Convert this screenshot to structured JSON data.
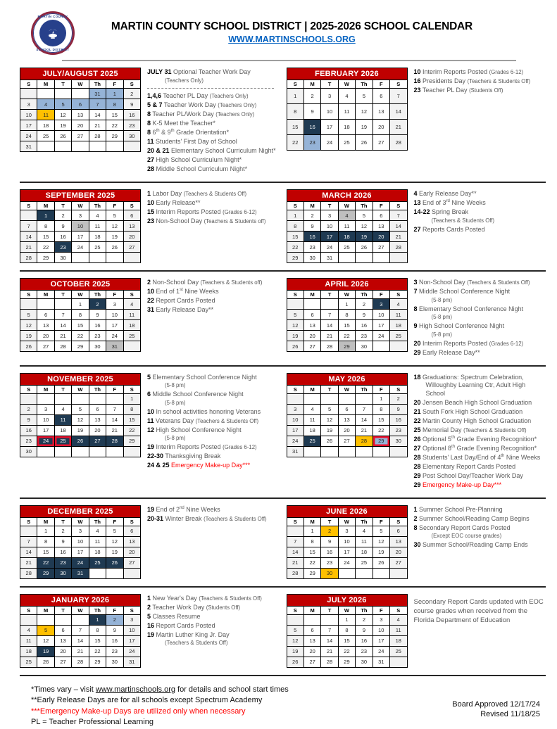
{
  "header": {
    "title": "MARTIN COUNTY SCHOOL DISTRICT | 2025-2026 SCHOOL CALENDAR",
    "website": "WWW.MARTINSCHOOLS.ORG",
    "seal_top": "MARTIN COUNTY",
    "seal_bottom": "SCHOOL DISTRICT"
  },
  "colors": {
    "header_red": "#C00000",
    "navy": "#1F3A52",
    "blue": "#95B3D7",
    "gold": "#FFC000",
    "gray": "#BFBFBF",
    "weekend": "#F2F2F2",
    "note_text": "#595959",
    "red_text": "#FF0000",
    "link_blue": "#0563C1",
    "cell_red_border": "#E8112D",
    "seal_maroon": "#8E2740",
    "seal_blue": "#27408B"
  },
  "day_headers": [
    "S",
    "M",
    "T",
    "W",
    "Th",
    "F",
    "S"
  ],
  "months": [
    {
      "id": "july-august-2025",
      "title": "JULY/AUGUST 2025",
      "weeks": [
        [
          "",
          "",
          "",
          "",
          "31:blue",
          "1:blue",
          "2"
        ],
        [
          "3",
          "4:blue",
          "5:blue",
          "6:blue",
          "7:blue",
          "8:blue",
          "9"
        ],
        [
          "10",
          "11:gold",
          "12",
          "13",
          "14",
          "15",
          "16"
        ],
        [
          "17",
          "18",
          "19",
          "20",
          "21",
          "22",
          "23"
        ],
        [
          "24",
          "25",
          "26",
          "27",
          "28",
          "29",
          "30"
        ],
        [
          "31",
          "",
          "",
          "",
          "",
          "",
          ""
        ]
      ],
      "notes": [
        {
          "n": "JULY 31",
          "t": "Optional Teacher Work Day",
          "q": "(Teachers Only)",
          "qblock": true
        },
        {
          "sep": true
        },
        {
          "n": "1,4,6",
          "t": "Teacher PL Day",
          "q": "(Teachers Only)"
        },
        {
          "n": "5 & 7",
          "t": "Teacher Work Day",
          "q": "(Teachers Only)"
        },
        {
          "n": "8",
          "t": "Teacher PL/Work Day",
          "q": "(Teachers Only)"
        },
        {
          "n": "8",
          "t": "K-5 Meet the Teacher*"
        },
        {
          "n": "8",
          "t": "6th & 9th Grade Orientation*"
        },
        {
          "n": "11",
          "t": "Students' First Day of School"
        },
        {
          "n": "20 & 21",
          "t": "Elementary School Curriculum Night*"
        },
        {
          "n": "27",
          "t": "High School Curriculum Night*"
        },
        {
          "n": "28",
          "t": "Middle School Curriculum Night*"
        }
      ]
    },
    {
      "id": "february-2026",
      "title": "FEBRUARY 2026",
      "weeks": [
        [
          "1",
          "2",
          "3",
          "4",
          "5",
          "6",
          "7"
        ],
        [
          "8",
          "9",
          "10",
          "11",
          "12",
          "13",
          "14"
        ],
        [
          "15",
          "16:navy",
          "17",
          "18",
          "19",
          "20",
          "21"
        ],
        [
          "22",
          "23:blue",
          "24",
          "25",
          "26",
          "27",
          "28"
        ]
      ],
      "notes": [
        {
          "n": "10",
          "t": "Interim Reports Posted",
          "q": "(Grades 6-12)"
        },
        {
          "n": "16",
          "t": "Presidents Day",
          "q": "(Teachers & Students Off)"
        },
        {
          "n": "23",
          "t": "Teacher PL Day",
          "q": "(Students Off)"
        }
      ]
    },
    {
      "id": "september-2025",
      "title": "SEPTEMBER 2025",
      "weeks": [
        [
          "",
          "1:navy",
          "2",
          "3",
          "4",
          "5",
          "6"
        ],
        [
          "7",
          "8",
          "9",
          "10:gray",
          "11",
          "12",
          "13"
        ],
        [
          "14",
          "15",
          "16",
          "17",
          "18",
          "19",
          "20"
        ],
        [
          "21",
          "22",
          "23:navy",
          "24",
          "25",
          "26",
          "27"
        ],
        [
          "28",
          "29",
          "30",
          "",
          "",
          "",
          ""
        ]
      ],
      "notes": [
        {
          "n": "1",
          "t": "Labor Day",
          "q": "(Teachers & Students Off)"
        },
        {
          "n": "10",
          "t": "Early Release**"
        },
        {
          "n": "15",
          "t": "Interim Reports Posted",
          "q": "(Grades 6-12)"
        },
        {
          "n": "23",
          "t": "Non-School Day",
          "q": "(Teachers & Students off)"
        }
      ]
    },
    {
      "id": "march-2026",
      "title": "MARCH 2026",
      "weeks": [
        [
          "1",
          "2",
          "3",
          "4:gray",
          "5",
          "6",
          "7"
        ],
        [
          "8",
          "9",
          "10",
          "11",
          "12",
          "13",
          "14"
        ],
        [
          "15",
          "16:navy",
          "17:navy",
          "18:navy",
          "19:navy",
          "20:navy",
          "21"
        ],
        [
          "22",
          "23",
          "24",
          "25",
          "26",
          "27",
          "28"
        ],
        [
          "29",
          "30",
          "31",
          "",
          "",
          "",
          ""
        ]
      ],
      "notes": [
        {
          "n": "4",
          "t": "Early Release Day**"
        },
        {
          "n": "13",
          "t": "End of 3rd Nine Weeks"
        },
        {
          "n": "14-22",
          "t": "Spring Break",
          "q": "(Teachers & Students Off)",
          "qblock": true
        },
        {
          "n": "27",
          "t": "Reports Cards Posted"
        }
      ]
    },
    {
      "id": "october-2025",
      "title": "OCTOBER 2025",
      "weeks": [
        [
          "",
          "",
          "",
          "1",
          "2:navy",
          "3",
          "4"
        ],
        [
          "5",
          "6",
          "7",
          "8",
          "9",
          "10",
          "11"
        ],
        [
          "12",
          "13",
          "14",
          "15",
          "16",
          "17",
          "18"
        ],
        [
          "19",
          "20",
          "21",
          "22",
          "23",
          "24",
          "25"
        ],
        [
          "26",
          "27",
          "28",
          "29",
          "30",
          "31:gray",
          ""
        ]
      ],
      "notes": [
        {
          "n": "2",
          "t": "Non-School Day",
          "q": "(Teachers & Students off)"
        },
        {
          "n": "10",
          "t": "End of 1st Nine Weeks"
        },
        {
          "n": "22",
          "t": "Report Cards Posted"
        },
        {
          "n": "31",
          "t": "Early Release Day**"
        }
      ]
    },
    {
      "id": "april-2026",
      "title": "APRIL 2026",
      "weeks": [
        [
          "",
          "",
          "",
          "1",
          "2",
          "3:navy",
          "4"
        ],
        [
          "5",
          "6",
          "7",
          "8",
          "9",
          "10",
          "11"
        ],
        [
          "12",
          "13",
          "14",
          "15",
          "16",
          "17",
          "18"
        ],
        [
          "19",
          "20",
          "21",
          "22",
          "23",
          "24",
          "25"
        ],
        [
          "26",
          "27",
          "28",
          "29:gray",
          "30",
          "",
          ""
        ]
      ],
      "notes": [
        {
          "n": "3",
          "t": "Non-School Day",
          "q": "(Teachers & Students Off)"
        },
        {
          "n": "7",
          "t": "Middle School Conference Night",
          "q": "(5-8 pm)",
          "qblock": true
        },
        {
          "n": "8",
          "t": "Elementary School Conference Night",
          "q": "(5-8 pm)",
          "qblock": true
        },
        {
          "n": "9",
          "t": "High School Conference Night",
          "q": "(5-8 pm)",
          "qblock": true
        },
        {
          "n": "20",
          "t": "Interim Reports Posted",
          "q": "(Grades 6-12)"
        },
        {
          "n": "29",
          "t": "Early Release Day**"
        }
      ]
    },
    {
      "id": "november-2025",
      "title": "NOVEMBER 2025",
      "weeks": [
        [
          "",
          "",
          "",
          "",
          "",
          "",
          "1"
        ],
        [
          "2",
          "3",
          "4",
          "5",
          "6",
          "7",
          "8"
        ],
        [
          "9",
          "10",
          "11:navy",
          "12",
          "13",
          "14",
          "15"
        ],
        [
          "16",
          "17",
          "18",
          "19",
          "20",
          "21",
          "22"
        ],
        [
          "23",
          "24:navy:rb",
          "25:navy:rb",
          "26:navy",
          "27:navy",
          "28:navy",
          "29"
        ],
        [
          "30",
          "",
          "",
          "",
          "",
          "",
          ""
        ]
      ],
      "notes": [
        {
          "n": "5",
          "t": "Elementary School Conference Night",
          "q": "(5-8 pm)",
          "qblock": true
        },
        {
          "n": "6",
          "t": "Middle School Conference Night",
          "q": "(5-8 pm)",
          "qblock": true
        },
        {
          "n": "10",
          "t": "In school activities honoring Veterans"
        },
        {
          "n": "11",
          "t": "Veterans Day",
          "q": "(Teachers & Students Off)"
        },
        {
          "n": "12",
          "t": "High School Conference Night",
          "q": "(5-8 pm)",
          "qblock": true
        },
        {
          "n": "19",
          "t": "Interim Reports Posted",
          "q": "(Grades 6-12)"
        },
        {
          "n": "22-30",
          "t": "Thanksgiving Break"
        },
        {
          "n": "24 & 25",
          "t": "Emergency Make-up Day***",
          "red": true
        }
      ]
    },
    {
      "id": "may-2026",
      "title": "MAY 2026",
      "weeks": [
        [
          "",
          "",
          "",
          "",
          "",
          "1",
          "2"
        ],
        [
          "3",
          "4",
          "5",
          "6",
          "7",
          "8",
          "9"
        ],
        [
          "10",
          "11",
          "12",
          "13",
          "14",
          "15",
          "16"
        ],
        [
          "17",
          "18",
          "19",
          "20",
          "21",
          "22",
          "23"
        ],
        [
          "24",
          "25:navy",
          "26",
          "27",
          "28:gold",
          "29:blue:rb",
          "30"
        ],
        [
          "31",
          "",
          "",
          "",
          "",
          "",
          ""
        ]
      ],
      "notes": [
        {
          "n": "18",
          "t": "Graduations: Spectrum Celebration, Willoughby Learning Ctr, Adult High School"
        },
        {
          "n": "20",
          "t": "Jensen Beach High School Graduation"
        },
        {
          "n": "21",
          "t": "South Fork High School Graduation"
        },
        {
          "n": "22",
          "t": "Martin County High School Graduation"
        },
        {
          "n": "25",
          "t": "Memorial Day",
          "q": "(Teachers & Students Off)"
        },
        {
          "n": "26",
          "t": "Optional 5th Grade Evening Recognition*"
        },
        {
          "n": "27",
          "t": "Optional 8th Grade Evening Recognition*"
        },
        {
          "n": "28",
          "t": "Students' Last Day/End of 4th Nine Weeks"
        },
        {
          "n": "28",
          "t": "Elementary Report Cards Posted"
        },
        {
          "n": "29",
          "t": "Post School Day/Teacher Work Day"
        },
        {
          "n": "29",
          "t": "Emergency Make-up Day***",
          "red": true
        }
      ]
    },
    {
      "id": "december-2025",
      "title": "DECEMBER 2025",
      "weeks": [
        [
          "",
          "1",
          "2",
          "3",
          "4",
          "5",
          "6"
        ],
        [
          "7",
          "8",
          "9",
          "10",
          "11",
          "12",
          "13"
        ],
        [
          "14",
          "15",
          "16",
          "17",
          "18",
          "19",
          "20"
        ],
        [
          "21",
          "22:navy",
          "23:navy",
          "24:navy",
          "25:navy",
          "26:navy",
          "27"
        ],
        [
          "28",
          "29:navy",
          "30:navy",
          "31:navy",
          "",
          "",
          ""
        ]
      ],
      "notes": [
        {
          "n": "19",
          "t": "End of 2nd Nine Weeks"
        },
        {
          "n": "20-31",
          "t": "Winter Break",
          "q": "(Teachers & Students Off)"
        }
      ]
    },
    {
      "id": "june-2026",
      "title": "JUNE 2026",
      "weeks": [
        [
          "",
          "1",
          "2:gold",
          "3",
          "4",
          "5",
          "6"
        ],
        [
          "7",
          "8",
          "9",
          "10",
          "11",
          "12",
          "13"
        ],
        [
          "14",
          "15",
          "16",
          "17",
          "18",
          "19",
          "20"
        ],
        [
          "21",
          "22",
          "23",
          "24",
          "25",
          "26",
          "27"
        ],
        [
          "28",
          "29",
          "30:gold",
          "",
          "",
          "",
          ""
        ]
      ],
      "notes": [
        {
          "n": "1",
          "t": "Summer School Pre-Planning"
        },
        {
          "n": "2",
          "t": "Summer School/Reading Camp Begins"
        },
        {
          "n": "8",
          "t": "Secondary Report Cards Posted",
          "q": "(Except EOC course grades)",
          "qblock": true
        },
        {
          "n": "30",
          "t": "Summer School/Reading Camp Ends"
        }
      ]
    },
    {
      "id": "january-2026",
      "title": "JANUARY 2026",
      "weeks": [
        [
          "",
          "",
          "",
          "",
          "1:navy",
          "2:blue",
          "3"
        ],
        [
          "4",
          "5:gold",
          "6",
          "7",
          "8",
          "9",
          "10"
        ],
        [
          "11",
          "12",
          "13",
          "14",
          "15",
          "16",
          "17"
        ],
        [
          "18",
          "19:navy",
          "20",
          "21",
          "22",
          "23",
          "24"
        ],
        [
          "25",
          "26",
          "27",
          "28",
          "29",
          "30",
          "31"
        ]
      ],
      "notes": [
        {
          "n": "1",
          "t": "New Year's Day",
          "q": "(Teachers & Students Off)"
        },
        {
          "n": "2",
          "t": "Teacher Work Day",
          "q": "(Students Off)"
        },
        {
          "n": "5",
          "t": "Classes Resume"
        },
        {
          "n": "16",
          "t": "Report Cards Posted"
        },
        {
          "n": "19",
          "t": "Martin Luther King Jr. Day",
          "q": "(Teachers & Students Off)",
          "qblock": true
        }
      ]
    },
    {
      "id": "july-2026",
      "title": "JULY 2026",
      "weeks": [
        [
          "",
          "",
          "",
          "1",
          "2",
          "3",
          "4"
        ],
        [
          "5",
          "6",
          "7",
          "8",
          "9",
          "10",
          "11"
        ],
        [
          "12",
          "13",
          "14",
          "15",
          "16",
          "17",
          "18"
        ],
        [
          "19",
          "20",
          "21",
          "22",
          "23",
          "24",
          "25"
        ],
        [
          "26",
          "27",
          "28",
          "29",
          "30",
          "31",
          ""
        ]
      ],
      "notes": [],
      "paragraph": "Secondary Report Cards updated with EOC course grades when received from the Florida Department of Education"
    }
  ],
  "footer": {
    "note1_pre": "*Times vary – visit ",
    "note1_link": "www.martinschools.org",
    "note1_post": " for details and school start times",
    "note2": "**Early Release Days are for all schools except Spectrum Academy",
    "note3": "***Emergency Make-up Days are utilized only when necessary",
    "note4": "PL = Teacher Professional Learning",
    "board_approved": "Board Approved 12/17/24",
    "revised": "Revised 11/18/25"
  }
}
